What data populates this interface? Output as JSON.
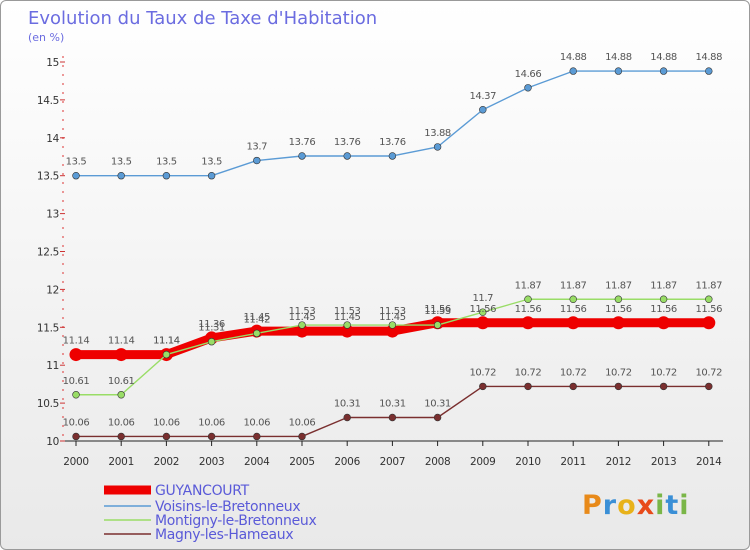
{
  "chart_data": {
    "type": "line",
    "title": "Evolution du Taux de Taxe d'Habitation",
    "subtitle": "(en %)",
    "x": [
      "2000",
      "2001",
      "2002",
      "2003",
      "2004",
      "2005",
      "2006",
      "2007",
      "2008",
      "2009",
      "2010",
      "2011",
      "2012",
      "2013",
      "2014"
    ],
    "ylim": [
      10,
      15
    ],
    "yticks": [
      "10",
      "10.5",
      "11",
      "11.5",
      "12",
      "12.5",
      "13",
      "13.5",
      "14",
      "14.5",
      "15"
    ],
    "grid": false,
    "legend_position": "bottom-left",
    "series": [
      {
        "name": "GUYANCOURT",
        "color": "#ee0000",
        "values": [
          11.14,
          11.14,
          11.14,
          11.36,
          11.45,
          11.45,
          11.45,
          11.45,
          11.56,
          11.56,
          11.56,
          11.56,
          11.56,
          11.56,
          11.56
        ]
      },
      {
        "name": "Voisins-le-Bretonneux",
        "color": "#5b9bd5",
        "values": [
          13.5,
          13.5,
          13.5,
          13.5,
          13.7,
          13.76,
          13.76,
          13.76,
          13.88,
          14.37,
          14.66,
          14.88,
          14.88,
          14.88,
          14.88
        ]
      },
      {
        "name": "Montigny-le-Bretonneux",
        "color": "#99dd66",
        "values": [
          10.61,
          10.61,
          11.14,
          11.31,
          11.42,
          11.53,
          11.53,
          11.53,
          11.53,
          11.7,
          11.87,
          11.87,
          11.87,
          11.87,
          11.87
        ]
      },
      {
        "name": "Magny-les-Hameaux",
        "color": "#7a2f2f",
        "values": [
          10.06,
          10.06,
          10.06,
          10.06,
          10.06,
          10.06,
          10.31,
          10.31,
          10.31,
          10.72,
          10.72,
          10.72,
          10.72,
          10.72,
          10.72
        ]
      }
    ]
  },
  "value_labels": [
    [
      "11.14",
      "11.14",
      "11.14",
      "11.36",
      "11.45",
      "11.45",
      "11.45",
      "11.45",
      "11.56",
      "11.56",
      "11.56",
      "11.56",
      "11.56",
      "11.56",
      "11.56"
    ],
    [
      "13.5",
      "13.5",
      "13.5",
      "13.5",
      "13.7",
      "13.76",
      "13.76",
      "13.76",
      "13.88",
      "14.37",
      "14.66",
      "14.88",
      "14.88",
      "14.88",
      "14.88"
    ],
    [
      "10.61",
      "10.61",
      "11.14",
      "11.31",
      "11.42",
      "11.53",
      "11.53",
      "11.53",
      "11.53",
      "11.7",
      "11.87",
      "11.87",
      "11.87",
      "11.87",
      "11.87"
    ],
    [
      "10.06",
      "10.06",
      "10.06",
      "10.06",
      "10.06",
      "10.06",
      "10.31",
      "10.31",
      "10.31",
      "10.72",
      "10.72",
      "10.72",
      "10.72",
      "10.72",
      "10.72"
    ]
  ],
  "brand": {
    "letters": [
      "P",
      "r",
      "o",
      "x",
      "i",
      "t",
      "i"
    ],
    "colors": [
      "#e88a1a",
      "#3a8fd6",
      "#e8b21a",
      "#e84a1a",
      "#7ab648",
      "#3a8fd6",
      "#7ab648"
    ]
  }
}
